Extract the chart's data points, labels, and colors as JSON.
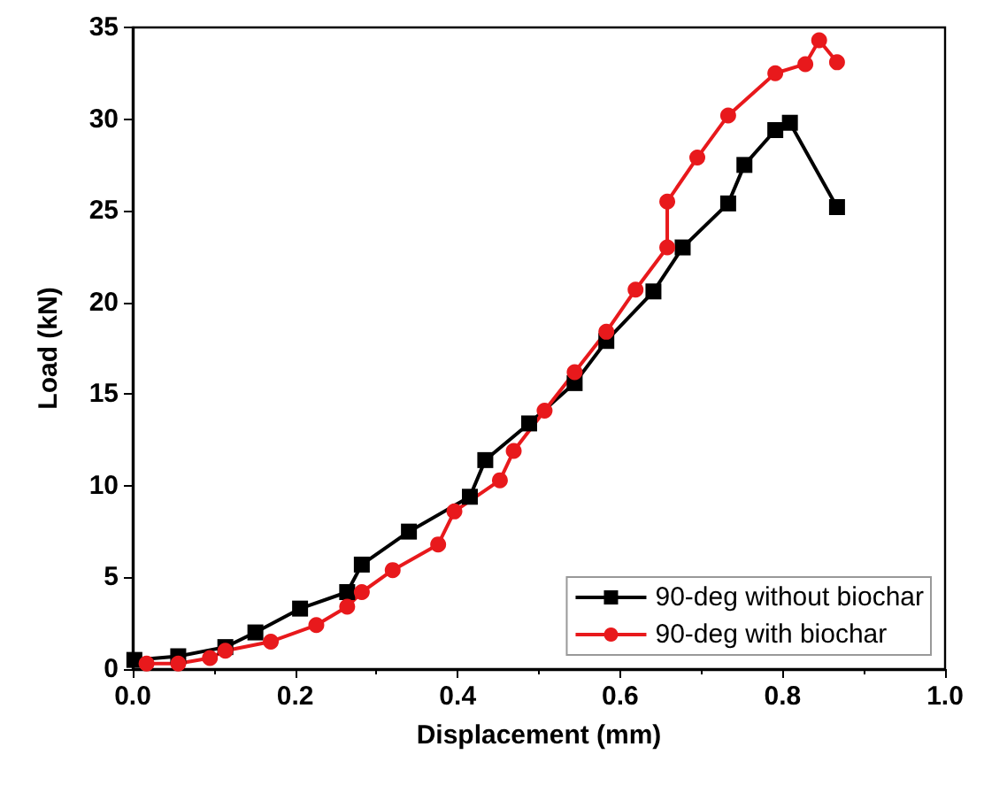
{
  "chart_data": {
    "type": "line",
    "xlabel": "Displacement (mm)",
    "ylabel": "Load (kN)",
    "xlim": [
      0,
      1
    ],
    "xticks": [
      {
        "value": 0,
        "label": "0.0"
      },
      0.2,
      0.4,
      0.6,
      0.8,
      {
        "value": 1,
        "label": "1.0"
      }
    ],
    "ylim": [
      0,
      35
    ],
    "yticks": [
      0,
      5,
      10,
      15,
      20,
      25,
      30,
      35
    ],
    "grid": false,
    "legend": "bottom right",
    "line_style": "solid",
    "series": [
      {
        "name": "90-deg without biochar",
        "color": "#000000",
        "marker": "square",
        "x": [
          0.002,
          0.056,
          0.114,
          0.151,
          0.206,
          0.264,
          0.282,
          0.34,
          0.415,
          0.434,
          0.488,
          0.544,
          0.583,
          0.641,
          0.677,
          0.733,
          0.753,
          0.791,
          0.809,
          0.867
        ],
        "values": [
          0.5,
          0.7,
          1.2,
          2.0,
          3.3,
          4.2,
          5.7,
          7.5,
          9.4,
          11.4,
          13.4,
          15.6,
          17.9,
          20.6,
          23.0,
          25.4,
          27.5,
          29.4,
          29.8,
          25.2
        ]
      },
      {
        "name": "90-deg with biochar",
        "color": "#e8191c",
        "marker": "circle",
        "x": [
          0.017,
          0.056,
          0.095,
          0.114,
          0.17,
          0.226,
          0.264,
          0.282,
          0.32,
          0.376,
          0.396,
          0.452,
          0.469,
          0.507,
          0.544,
          0.583,
          0.619,
          0.658,
          0.658,
          0.695,
          0.733,
          0.791,
          0.828,
          0.845,
          0.867
        ],
        "values": [
          0.3,
          0.3,
          0.6,
          1.0,
          1.5,
          2.4,
          3.4,
          4.2,
          5.4,
          6.8,
          8.6,
          10.3,
          11.9,
          14.1,
          16.2,
          18.4,
          20.7,
          23.0,
          25.5,
          27.9,
          30.2,
          32.5,
          33.0,
          34.3,
          33.1
        ]
      }
    ]
  }
}
